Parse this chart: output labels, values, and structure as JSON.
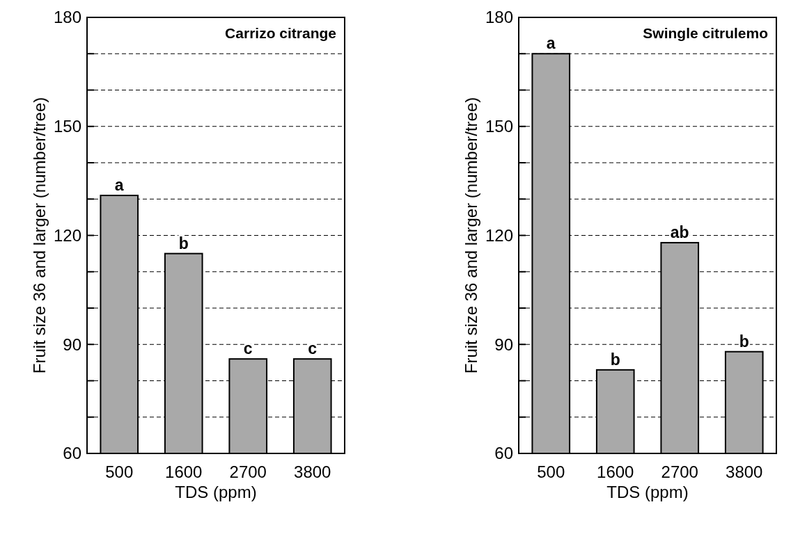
{
  "chart_data": [
    {
      "type": "bar",
      "title": "Carrizo citrange",
      "xlabel": "TDS (ppm)",
      "ylabel": "Fruit size 36 and larger (number/tree)",
      "categories": [
        "500",
        "1600",
        "2700",
        "3800"
      ],
      "values": [
        131,
        115,
        86,
        86
      ],
      "color": "#a9a9a9",
      "ylim": [
        60,
        180
      ],
      "yticks": [
        60,
        {
          "value": 70,
          "label": null
        },
        {
          "value": 80,
          "label": null
        },
        90,
        {
          "value": 100,
          "label": null
        },
        {
          "value": 110,
          "label": null
        },
        120,
        {
          "value": 130,
          "label": null
        },
        {
          "value": 140,
          "label": null
        },
        150,
        {
          "value": 160,
          "label": null
        },
        {
          "value": 170,
          "label": null
        },
        180
      ],
      "grid": "y",
      "annotations": [
        {
          "text": "a",
          "x": "500",
          "y": 131
        },
        {
          "text": "b",
          "x": "1600",
          "y": 115
        },
        {
          "text": "c",
          "x": "2700",
          "y": 86
        },
        {
          "text": "c",
          "x": "3800",
          "y": 86
        }
      ]
    },
    {
      "type": "bar",
      "title": "Swingle citrulemo",
      "xlabel": "TDS (ppm)",
      "ylabel": "Fruit size 36 and larger (number/tree)",
      "categories": [
        "500",
        "1600",
        "2700",
        "3800"
      ],
      "values": [
        170,
        83,
        118,
        88
      ],
      "color": "#a9a9a9",
      "ylim": [
        60,
        180
      ],
      "yticks": [
        60,
        {
          "value": 70,
          "label": null
        },
        {
          "value": 80,
          "label": null
        },
        90,
        {
          "value": 100,
          "label": null
        },
        {
          "value": 110,
          "label": null
        },
        120,
        {
          "value": 130,
          "label": null
        },
        {
          "value": 140,
          "label": null
        },
        150,
        {
          "value": 160,
          "label": null
        },
        {
          "value": 170,
          "label": null
        },
        180
      ],
      "grid": "y",
      "annotations": [
        {
          "text": "a",
          "x": "500",
          "y": 170
        },
        {
          "text": "b",
          "x": "1600",
          "y": 83
        },
        {
          "text": "ab",
          "x": "2700",
          "y": 118
        },
        {
          "text": "b",
          "x": "3800",
          "y": 88
        }
      ]
    }
  ]
}
